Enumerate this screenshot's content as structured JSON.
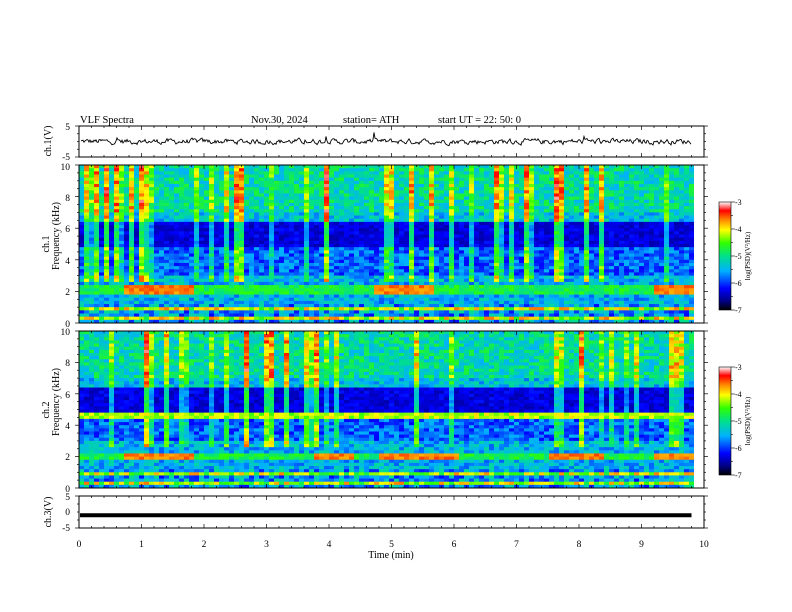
{
  "header": {
    "title": "VLF  Spectra",
    "date": "Nov.30, 2024",
    "station": "station= ATH",
    "start": "start  UT  =   22: 50: 0"
  },
  "chart_data": [
    {
      "type": "line",
      "panel": "ch1-waveform",
      "ylabel": "ch.1(V)",
      "ylim": [
        -5,
        5
      ],
      "yticks": [
        "5",
        "-5"
      ],
      "xlim": [
        0,
        10
      ],
      "description_of_values": "noisy signal centered near 0 V, amplitude about ±1 V, occasional small spikes",
      "approx_mean": 0,
      "approx_amplitude": 1
    },
    {
      "type": "heatmap",
      "panel": "ch1-spectrogram",
      "ylabel": "ch.1\nFrequency  (kHz)",
      "ylabel_line1": "ch.1",
      "ylabel_line2": "Frequency  (kHz)",
      "ylim": [
        0,
        10
      ],
      "yticks": [
        "0",
        "2",
        "4",
        "6",
        "8",
        "10"
      ],
      "xlim": [
        0,
        10
      ],
      "colorbar": {
        "label": "log(PSD)(V²/Hz)",
        "range": [
          -7,
          -3
        ],
        "ticks": [
          "-3",
          "-4",
          "-5",
          "-6",
          "-7"
        ]
      },
      "features": {
        "strong_band_khz": 2.1,
        "band_segments_min": [
          [
            0.7,
            1.8
          ],
          [
            4.7,
            5.7
          ],
          [
            9.2,
            9.8
          ]
        ],
        "hiss_above_khz": 7,
        "bright_lines_below_khz": 1
      }
    },
    {
      "type": "heatmap",
      "panel": "ch2-spectrogram",
      "ylabel_line1": "ch.2",
      "ylabel_line2": "Frequency  (kHz)",
      "ylim": [
        0,
        10
      ],
      "yticks": [
        "0",
        "2",
        "4",
        "6",
        "8",
        "10"
      ],
      "xlim": [
        0,
        10
      ],
      "colorbar": {
        "label": "log(PSD)(V²/Hz)",
        "range": [
          -7,
          -3
        ],
        "ticks": [
          "-3",
          "-4",
          "-5",
          "-6",
          "-7"
        ]
      },
      "features": {
        "strong_band_khz": 2.0,
        "band_segments_min": [
          [
            0.7,
            1.8
          ],
          [
            3.8,
            4.4
          ],
          [
            4.8,
            6.1
          ],
          [
            7.5,
            8.4
          ],
          [
            9.2,
            9.8
          ]
        ],
        "line_khz": 4.6,
        "hiss_above_khz": 7
      }
    },
    {
      "type": "line",
      "panel": "ch3-waveform",
      "ylabel": "ch.3(V)",
      "ylim": [
        -5,
        5
      ],
      "yticks": [
        "5",
        "0",
        "-5"
      ],
      "xlim": [
        0,
        10
      ],
      "xlabel": "Time  (min)",
      "xticks": [
        "0",
        "1",
        "2",
        "3",
        "4",
        "5",
        "6",
        "7",
        "8",
        "9",
        "10"
      ],
      "approx_value": -1,
      "data_end_min": 9.8
    }
  ]
}
